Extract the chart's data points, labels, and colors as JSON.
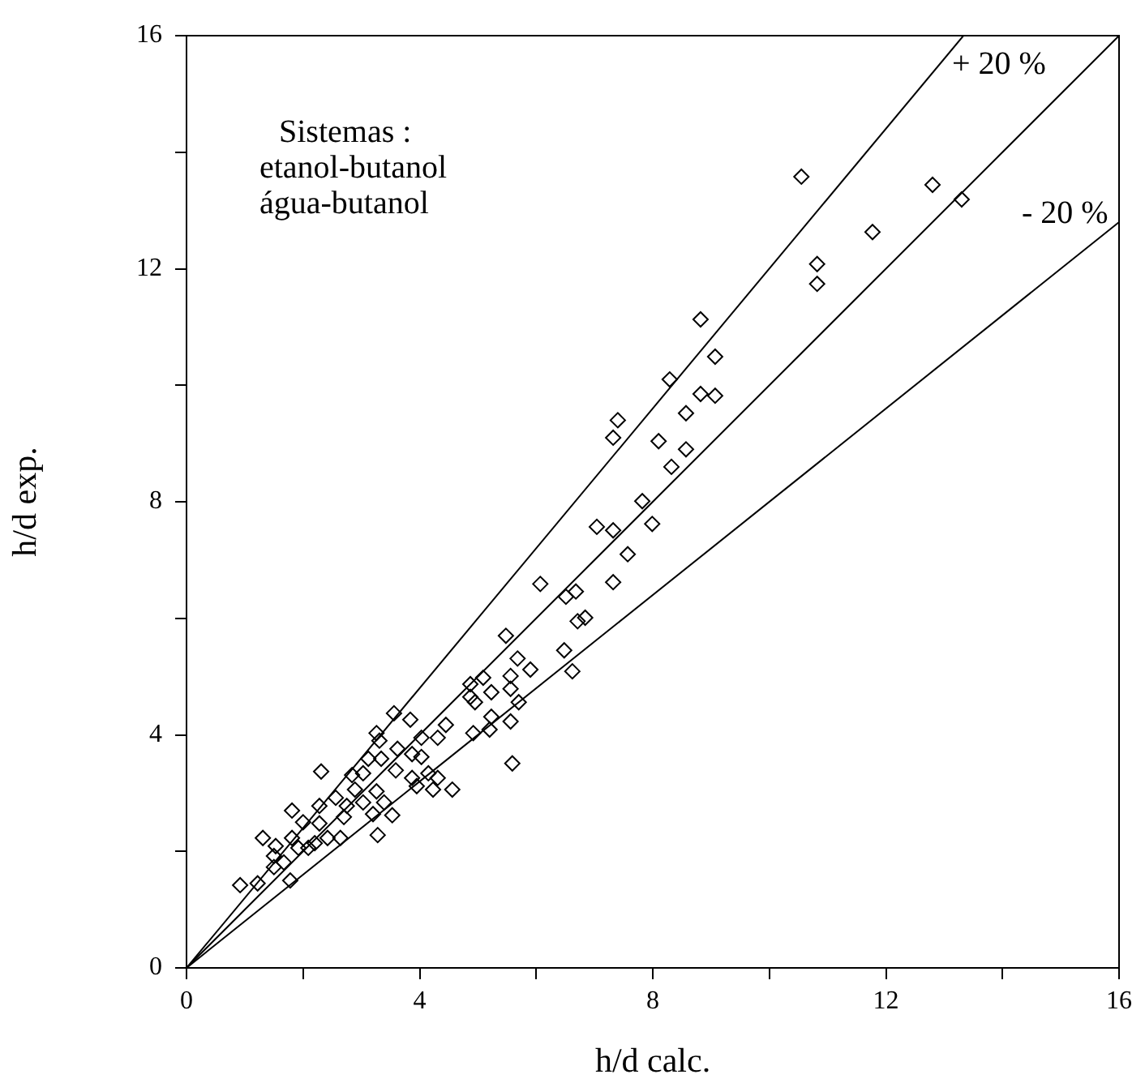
{
  "chart_data": {
    "type": "scatter",
    "xlabel": "h/d calc.",
    "ylabel": "h/d exp.",
    "xlim": [
      0,
      16
    ],
    "ylim": [
      0,
      16
    ],
    "xticks": [
      0,
      {
        "value": 2,
        "label": null
      },
      4,
      {
        "value": 6,
        "label": null
      },
      8,
      {
        "value": 10,
        "label": null
      },
      12,
      {
        "value": 14,
        "label": null
      },
      16
    ],
    "yticks": [
      0,
      {
        "value": 2,
        "label": null
      },
      4,
      {
        "value": 6,
        "label": null
      },
      8,
      {
        "value": 10,
        "label": null
      },
      12,
      {
        "value": 14,
        "label": null
      },
      16
    ],
    "grid": false,
    "legend": false,
    "marker": "diamond",
    "annotations": [
      "Sistemas :\netanol-butanol\nágua-butanol",
      "+ 20 %",
      "- 20 %"
    ],
    "series": [
      {
        "type": "line",
        "color": "#000000",
        "marker": "none",
        "x": [
          0,
          13.33
        ],
        "values": [
          0,
          16
        ]
      },
      {
        "type": "line",
        "color": "#000000",
        "marker": "none",
        "x": [
          0,
          16
        ],
        "values": [
          0,
          16
        ]
      },
      {
        "type": "line",
        "color": "#000000",
        "marker": "none",
        "x": [
          0,
          16
        ],
        "values": [
          0,
          12.8
        ]
      },
      {
        "color": "#000000",
        "x": [
          10.55,
          12.8,
          13.3,
          11.77,
          10.82,
          10.82,
          8.82,
          9.07,
          8.29,
          8.82,
          9.07,
          8.57,
          8.1,
          8.57,
          7.4,
          7.32,
          8.32,
          7.82,
          7.04,
          7.32,
          7.99,
          7.57,
          7.32,
          6.07,
          6.51,
          6.68,
          6.71,
          6.84,
          5.48,
          6.48,
          6.62,
          5.68,
          5.9,
          4.87,
          5.09,
          5.56,
          5.23,
          4.95,
          5.56,
          5.7,
          3.84,
          4.45,
          5.23,
          5.56,
          4.92,
          5.2,
          4.87,
          5.59,
          4.31,
          4.03,
          3.56,
          3.26,
          3.31,
          3.62,
          3.87,
          3.34,
          3.12,
          3.59,
          4.03,
          4.15,
          3.87,
          4.31,
          3.95,
          4.23,
          4.56,
          2.31,
          2.84,
          3.03,
          2.89,
          2.56,
          2.75,
          3.03,
          3.26,
          3.39,
          3.53,
          3.2,
          2.7,
          2.28,
          1.81,
          2.0,
          2.28,
          2.42,
          2.64,
          3.28,
          1.31,
          1.53,
          1.81,
          1.92,
          2.09,
          1.5,
          1.67,
          1.78,
          1.5,
          1.22,
          0.92,
          2.2
        ],
        "values": [
          13.58,
          13.44,
          13.19,
          12.63,
          12.08,
          11.74,
          11.13,
          10.49,
          10.1,
          9.85,
          9.82,
          9.52,
          9.04,
          8.9,
          9.4,
          9.1,
          8.6,
          8.01,
          7.57,
          7.51,
          7.62,
          7.1,
          6.62,
          6.59,
          6.37,
          6.46,
          5.95,
          6.01,
          5.7,
          5.45,
          5.09,
          5.31,
          5.12,
          4.87,
          4.98,
          5.01,
          4.73,
          4.56,
          4.79,
          4.56,
          4.26,
          4.17,
          4.31,
          4.23,
          4.03,
          4.09,
          4.65,
          3.51,
          3.95,
          3.95,
          4.37,
          4.03,
          3.9,
          3.76,
          3.67,
          3.59,
          3.59,
          3.39,
          3.62,
          3.34,
          3.26,
          3.26,
          3.12,
          3.06,
          3.06,
          3.37,
          3.31,
          3.34,
          3.06,
          2.92,
          2.78,
          2.84,
          3.03,
          2.84,
          2.62,
          2.64,
          2.59,
          2.78,
          2.7,
          2.5,
          2.48,
          2.23,
          2.23,
          2.28,
          2.23,
          2.09,
          2.23,
          2.06,
          2.06,
          1.92,
          1.81,
          1.5,
          1.73,
          1.45,
          1.42,
          2.14
        ]
      }
    ]
  }
}
